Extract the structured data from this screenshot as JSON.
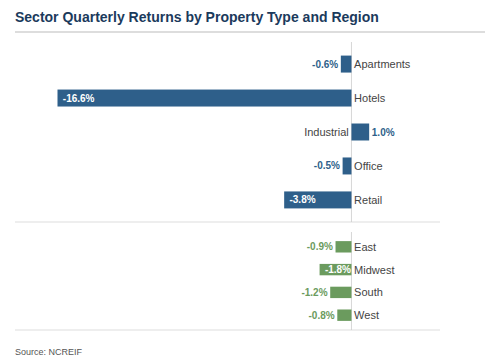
{
  "chart_data": [
    {
      "type": "bar",
      "orientation": "horizontal",
      "title": "Sector Quarterly Returns by Property Type and Region",
      "categories": [
        "Apartments",
        "Hotels",
        "Industrial",
        "Office",
        "Retail"
      ],
      "values": [
        -0.6,
        -16.6,
        1.0,
        -0.5,
        -3.8
      ],
      "value_labels": [
        "-0.6%",
        "-16.6%",
        "1.0%",
        "-0.5%",
        "-3.8%"
      ],
      "color": "#2E5F8A",
      "xlim": [
        -19,
        5
      ],
      "data_labels": true,
      "tick_labels": false,
      "grid": false
    },
    {
      "type": "bar",
      "orientation": "horizontal",
      "categories": [
        "East",
        "Midwest",
        "South",
        "West"
      ],
      "values": [
        -0.9,
        -1.8,
        -1.2,
        -0.8
      ],
      "value_labels": [
        "-0.9%",
        "-1.8%",
        "-1.2%",
        "-0.8%"
      ],
      "color": "#6B9B5E",
      "xlim": [
        -19,
        5
      ],
      "data_labels": true,
      "tick_labels": false,
      "grid": false,
      "annotations": [
        "Source: NCREIF"
      ]
    }
  ]
}
